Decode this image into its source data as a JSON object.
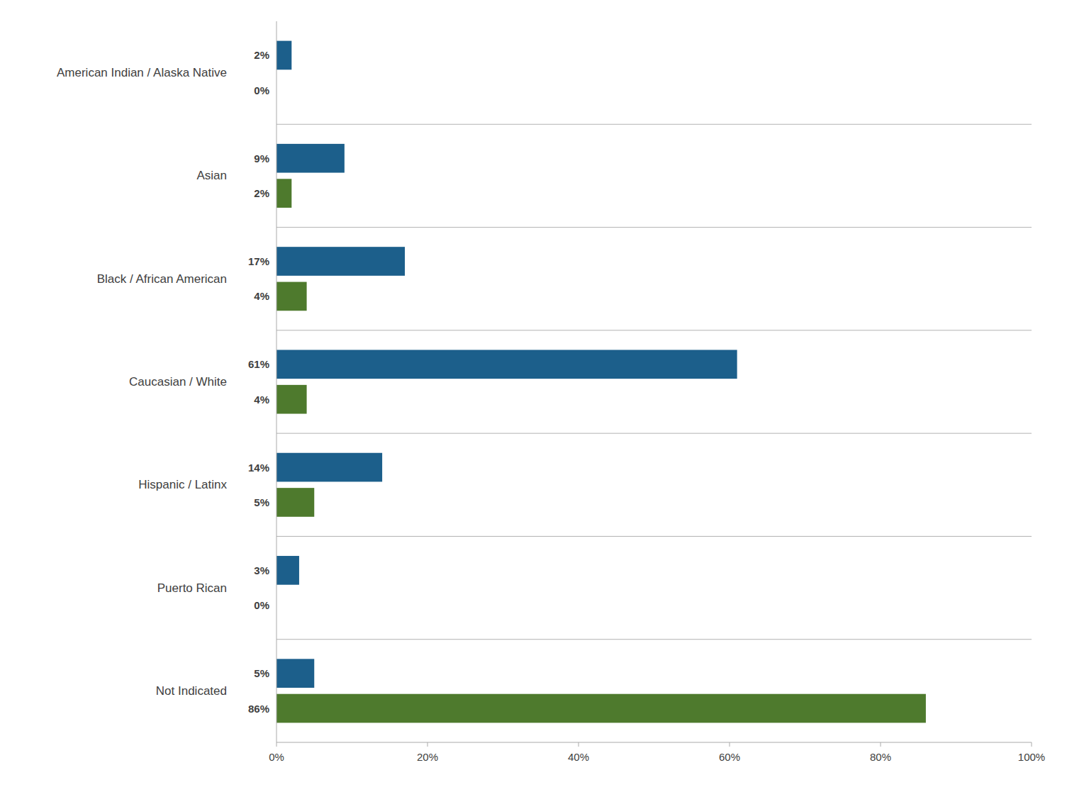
{
  "chart_data": {
    "type": "bar",
    "orientation": "horizontal",
    "categories": [
      "American Indian / Alaska Native",
      "Asian",
      "Black / African American",
      "Caucasian / White",
      "Hispanic / Latinx",
      "Puerto Rican",
      "Not Indicated"
    ],
    "series": [
      {
        "color": "#1c5f8b",
        "values": [
          2,
          9,
          17,
          61,
          14,
          3,
          5
        ],
        "value_labels": [
          "2%",
          "9%",
          "17%",
          "61%",
          "14%",
          "3%",
          "5%"
        ]
      },
      {
        "color": "#4e7a2d",
        "values": [
          0,
          2,
          4,
          4,
          5,
          0,
          86
        ],
        "value_labels": [
          "0%",
          "2%",
          "4%",
          "4%",
          "5%",
          "0%",
          "86%"
        ]
      }
    ],
    "xlim": [
      0,
      100
    ],
    "xticks": [
      {
        "value": 0,
        "label": "0%"
      },
      {
        "value": 20,
        "label": "20%"
      },
      {
        "value": 40,
        "label": "40%"
      },
      {
        "value": 60,
        "label": "60%"
      },
      {
        "value": 80,
        "label": "80%"
      },
      {
        "value": 100,
        "label": "100%"
      }
    ],
    "data_labels": true,
    "grid": false
  }
}
